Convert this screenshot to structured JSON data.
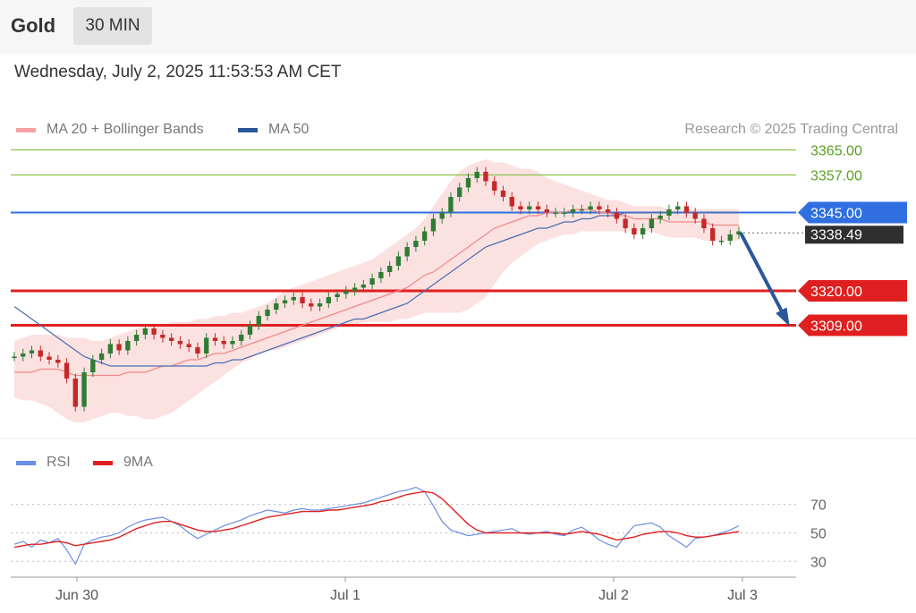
{
  "header": {
    "symbol": "Gold",
    "timeframe": "30 MIN"
  },
  "datetime": "Wednesday, July 2, 2025 11:53:53 AM CET",
  "legend": {
    "items": [
      {
        "label": "MA 20 + Bollinger Bands",
        "color": "#f4a3a3"
      },
      {
        "label": "MA 50",
        "color": "#2b579a"
      }
    ],
    "rsi_items": [
      {
        "label": "RSI",
        "color": "#6b8fe6"
      },
      {
        "label": "9MA",
        "color": "#e02020"
      }
    ]
  },
  "credit": "Research © 2025 Trading Central",
  "colors": {
    "up": "#2e7d32",
    "down": "#c62828",
    "resistance": "#8bc34a",
    "pivot": "#2f6fe0",
    "support": "#e02020",
    "arrow": "#2b579a"
  },
  "chart_data": [
    {
      "type": "candlestick",
      "x_labels": [
        "Jun 30",
        "Jul 1",
        "Jul 2",
        "Jul 3"
      ],
      "ylim": [
        3270,
        3370
      ],
      "levels": [
        {
          "value": 3365.0,
          "label": "3365.00",
          "kind": "resistance"
        },
        {
          "value": 3357.0,
          "label": "3357.00",
          "kind": "resistance"
        },
        {
          "value": 3345.0,
          "label": "3345.00",
          "kind": "pivot"
        },
        {
          "value": 3320.0,
          "label": "3320.00",
          "kind": "support"
        },
        {
          "value": 3309.0,
          "label": "3309.00",
          "kind": "support"
        }
      ],
      "last_price": 3338.49,
      "last_price_label": "3338.49",
      "close": [
        3299,
        3300,
        3301,
        3299,
        3298,
        3297,
        3292,
        3283,
        3294,
        3298,
        3300,
        3303,
        3301,
        3304,
        3306,
        3308,
        3306,
        3305,
        3304,
        3303,
        3302,
        3300,
        3305,
        3304,
        3303,
        3304,
        3306,
        3309,
        3312,
        3314,
        3316,
        3317,
        3318,
        3316,
        3315,
        3316,
        3318,
        3319,
        3320,
        3321,
        3322,
        3324,
        3326,
        3328,
        3331,
        3334,
        3336,
        3339,
        3343,
        3345,
        3350,
        3353,
        3356,
        3358,
        3355,
        3352,
        3350,
        3347,
        3346,
        3347,
        3346,
        3345,
        3345,
        3345,
        3346,
        3346,
        3347,
        3346,
        3345,
        3343,
        3340,
        3338,
        3340,
        3343,
        3344,
        3346,
        3347,
        3345,
        3343,
        3340,
        3336,
        3336,
        3338,
        3339
      ],
      "ma20": [
        3294,
        3294,
        3294,
        3295,
        3295,
        3295,
        3294,
        3293,
        3293,
        3293,
        3293,
        3293,
        3293,
        3294,
        3294,
        3294,
        3295,
        3296,
        3296,
        3297,
        3298,
        3298,
        3299,
        3300,
        3300,
        3301,
        3302,
        3303,
        3304,
        3305,
        3306,
        3307,
        3308,
        3309,
        3310,
        3311,
        3312,
        3313,
        3314,
        3315,
        3316,
        3317,
        3318,
        3319,
        3320,
        3321,
        3323,
        3325,
        3326,
        3328,
        3330,
        3332,
        3334,
        3336,
        3338,
        3340,
        3341,
        3342,
        3343,
        3344,
        3344,
        3345,
        3345,
        3345,
        3346,
        3346,
        3346,
        3345,
        3345,
        3344,
        3344,
        3343,
        3343,
        3343,
        3343,
        3342,
        3342,
        3342,
        3342,
        3342,
        3341,
        3341,
        3341,
        3341
      ],
      "ma50": [
        3315,
        3313,
        3311,
        3309,
        3307,
        3305,
        3303,
        3301,
        3299,
        3298,
        3297,
        3296,
        3296,
        3296,
        3296,
        3296,
        3296,
        3296,
        3296,
        3296,
        3296,
        3296,
        3296,
        3297,
        3297,
        3298,
        3298,
        3299,
        3300,
        3301,
        3302,
        3303,
        3304,
        3305,
        3306,
        3307,
        3308,
        3309,
        3310,
        3311,
        3311,
        3312,
        3313,
        3314,
        3315,
        3316,
        3318,
        3320,
        3322,
        3324,
        3326,
        3328,
        3330,
        3332,
        3334,
        3335,
        3336,
        3337,
        3338,
        3339,
        3340,
        3340,
        3341,
        3342,
        3342,
        3343,
        3343,
        3344,
        3344,
        3344,
        3345,
        3345,
        3345,
        3345,
        3345,
        3345,
        3345,
        3345,
        3345,
        3345,
        3345,
        3345,
        3345,
        3345
      ],
      "bb_upper": [
        3304,
        3305,
        3306,
        3306,
        3306,
        3306,
        3305,
        3305,
        3305,
        3304,
        3304,
        3305,
        3306,
        3307,
        3308,
        3309,
        3309,
        3309,
        3310,
        3310,
        3310,
        3311,
        3311,
        3312,
        3312,
        3313,
        3313,
        3314,
        3315,
        3316,
        3318,
        3320,
        3321,
        3322,
        3323,
        3324,
        3325,
        3326,
        3327,
        3328,
        3329,
        3330,
        3332,
        3334,
        3336,
        3338,
        3340,
        3343,
        3347,
        3351,
        3355,
        3358,
        3360,
        3361,
        3362,
        3361,
        3361,
        3360,
        3359,
        3359,
        3358,
        3356,
        3355,
        3354,
        3353,
        3352,
        3351,
        3350,
        3349,
        3349,
        3348,
        3347,
        3347,
        3347,
        3347,
        3346,
        3346,
        3346,
        3346,
        3346,
        3346,
        3346,
        3346,
        3346
      ],
      "bb_lower": [
        3286,
        3285,
        3285,
        3284,
        3283,
        3281,
        3279,
        3278,
        3278,
        3279,
        3280,
        3281,
        3281,
        3280,
        3280,
        3279,
        3279,
        3280,
        3281,
        3283,
        3285,
        3287,
        3289,
        3291,
        3293,
        3295,
        3297,
        3298,
        3300,
        3301,
        3301,
        3302,
        3303,
        3304,
        3305,
        3306,
        3307,
        3308,
        3309,
        3309,
        3310,
        3310,
        3310,
        3310,
        3311,
        3311,
        3312,
        3313,
        3313,
        3313,
        3313,
        3313,
        3314,
        3316,
        3318,
        3322,
        3326,
        3329,
        3331,
        3333,
        3335,
        3336,
        3337,
        3338,
        3338,
        3339,
        3339,
        3339,
        3339,
        3339,
        3339,
        3339,
        3339,
        3339,
        3338,
        3337,
        3337,
        3337,
        3337,
        3336,
        3336,
        3336,
        3336,
        3336
      ],
      "forecast": {
        "from": 3338.49,
        "to": 3309.0
      }
    },
    {
      "type": "line",
      "yticks": [
        70,
        50,
        30
      ],
      "ylim": [
        22,
        88
      ],
      "series": [
        {
          "name": "RSI",
          "values": [
            42,
            44,
            40,
            45,
            43,
            46,
            38,
            28,
            42,
            45,
            47,
            48,
            50,
            54,
            57,
            59,
            60,
            61,
            58,
            55,
            50,
            46,
            49,
            52,
            55,
            57,
            59,
            62,
            64,
            66,
            65,
            64,
            66,
            67,
            66,
            66,
            67,
            68,
            69,
            70,
            71,
            73,
            75,
            77,
            79,
            80,
            82,
            79,
            69,
            58,
            52,
            50,
            48,
            49,
            50,
            51,
            52,
            53,
            50,
            49,
            50,
            51,
            49,
            48,
            52,
            54,
            50,
            45,
            42,
            40,
            48,
            55,
            56,
            57,
            54,
            48,
            44,
            40,
            46,
            47,
            48,
            50,
            52,
            55
          ]
        },
        {
          "name": "9MA",
          "values": [
            40,
            41,
            42,
            42,
            43,
            44,
            43,
            41,
            42,
            43,
            44,
            45,
            47,
            50,
            53,
            55,
            57,
            58,
            58,
            56,
            54,
            52,
            51,
            51,
            52,
            53,
            55,
            57,
            59,
            61,
            62,
            63,
            64,
            65,
            65,
            65,
            66,
            66,
            67,
            68,
            69,
            70,
            72,
            73,
            75,
            77,
            78,
            79,
            78,
            74,
            68,
            62,
            56,
            52,
            50,
            50,
            50,
            50,
            50,
            50,
            50,
            50,
            50,
            49,
            50,
            51,
            50,
            49,
            47,
            45,
            46,
            47,
            49,
            50,
            51,
            51,
            50,
            48,
            47,
            47,
            48,
            49,
            50,
            51
          ]
        }
      ],
      "x_labels": [
        "Jun 30",
        "Jul 1",
        "Jul 2",
        "Jul 3"
      ]
    }
  ]
}
